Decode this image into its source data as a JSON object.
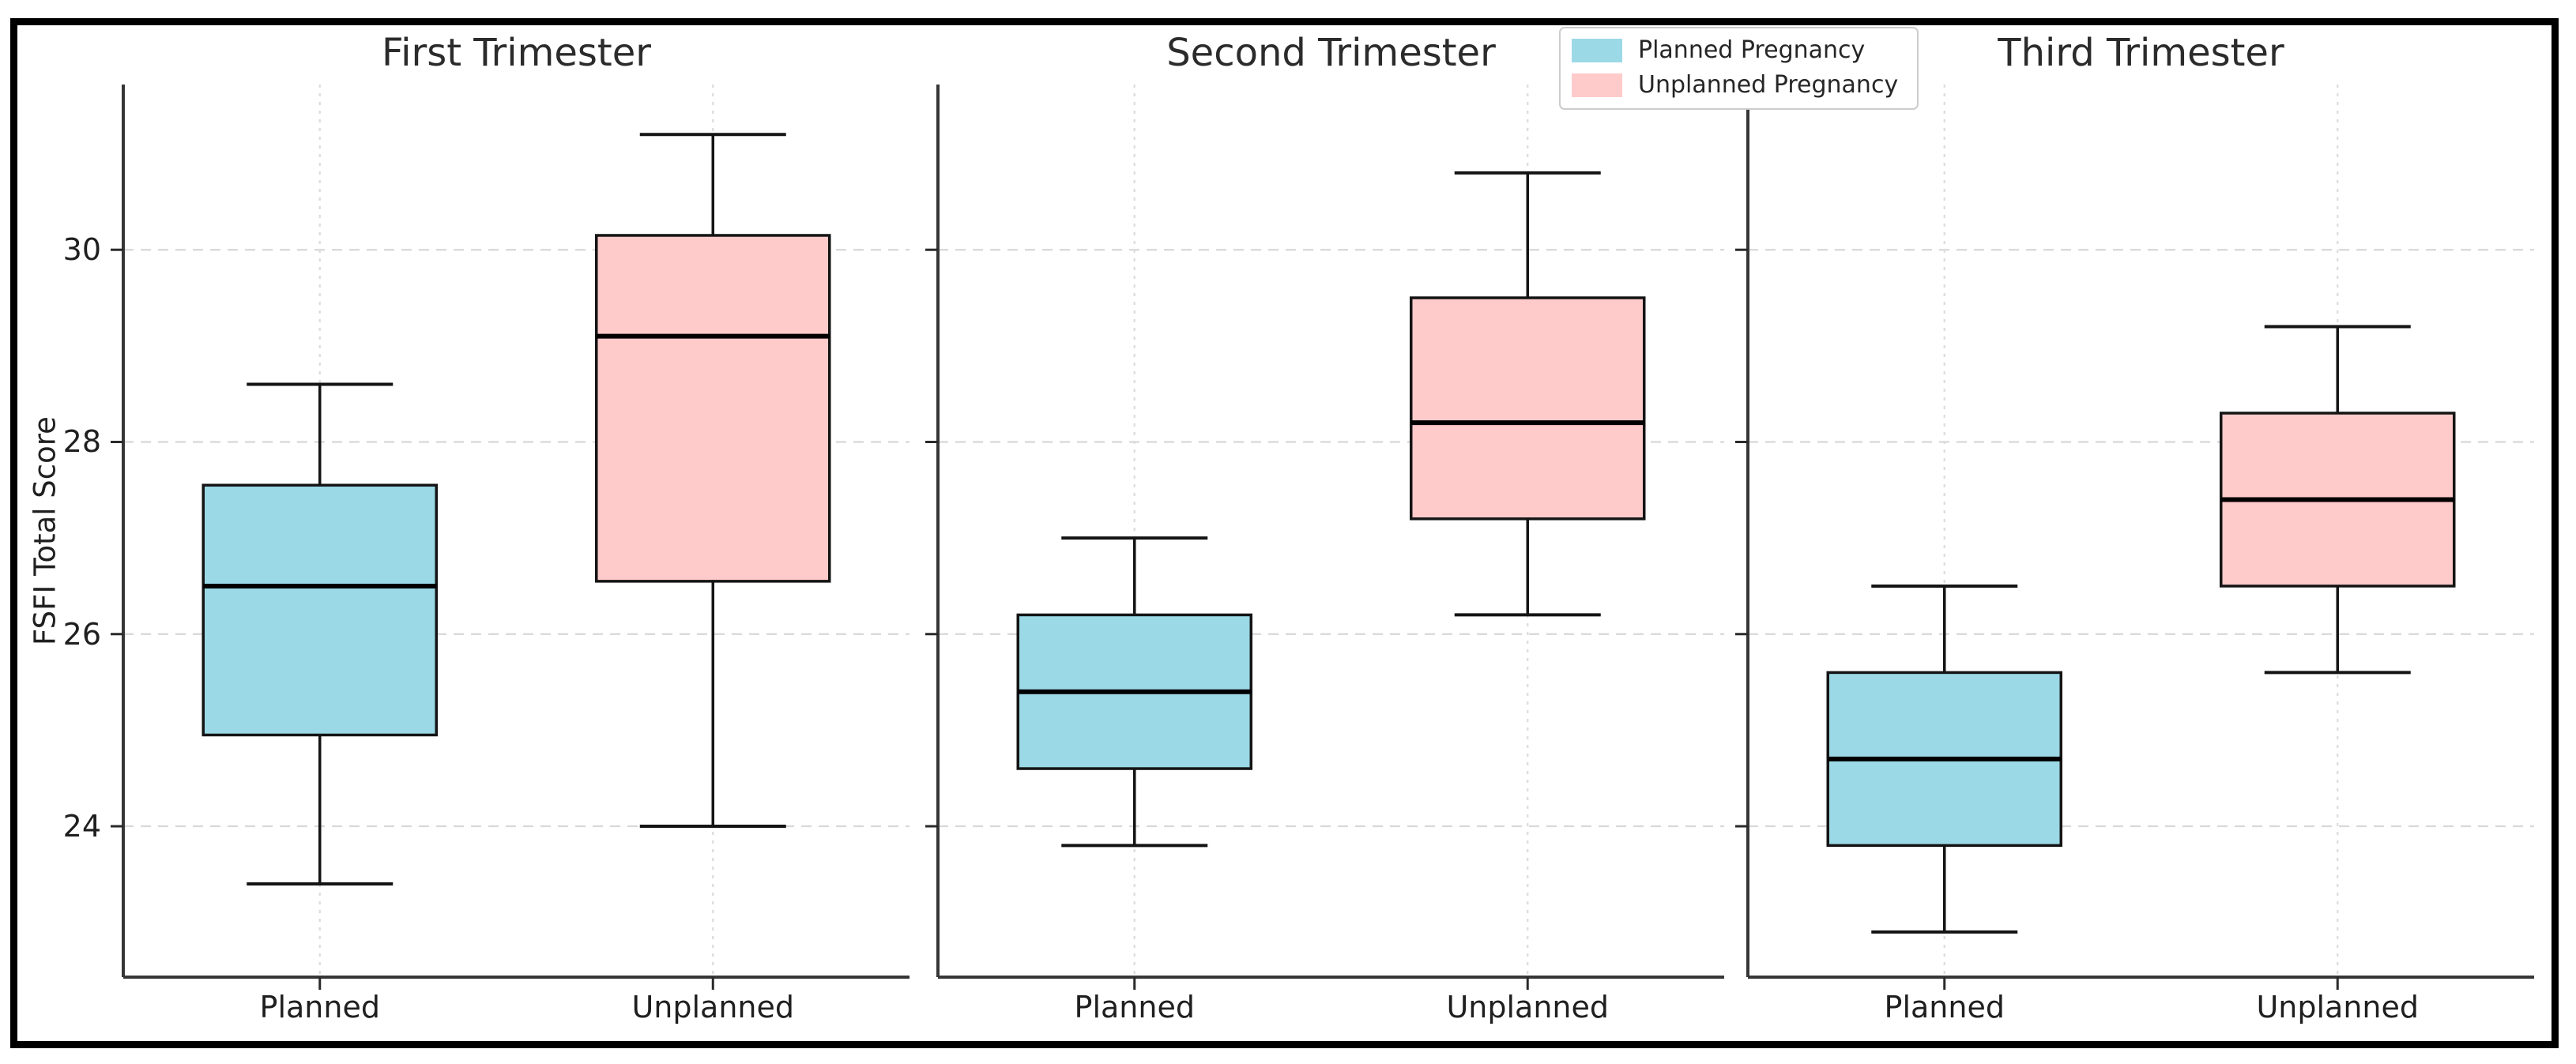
{
  "figure": {
    "background": "#ffffff",
    "border_color": "#000000"
  },
  "legend": {
    "items": [
      {
        "label": "Planned Pregnancy",
        "color": "#9bd9e6"
      },
      {
        "label": "Unplanned Pregnancy",
        "color": "#ffcaca"
      }
    ]
  },
  "chart_data": {
    "type": "box",
    "ylabel": "FSFI Total Score",
    "ylim": [
      22.43,
      31.72
    ],
    "yticks": [
      {
        "label": "30",
        "value": 30
      },
      {
        "label": "28",
        "value": 28
      },
      {
        "label": "26",
        "value": 26
      },
      {
        "label": "24",
        "value": 24
      }
    ],
    "groups": [
      "Planned",
      "Unplanned"
    ],
    "grid": {
      "horizontal": true,
      "vertical": true,
      "style": "dashed"
    },
    "legend_position": "top-center",
    "colors": {
      "planned_fill": "#9bd9e6",
      "unplanned_fill": "#ffcaca",
      "box_edge": "#141414",
      "median": "#000000",
      "whisker": "#141414",
      "grid_h": "#d8d8d8",
      "grid_v": "#dcdcdc",
      "spine": "#363636",
      "tick": "#2a2a2a"
    },
    "panels": [
      {
        "title": "First Trimester",
        "boxes": [
          {
            "group": "Planned",
            "series": "Planned Pregnancy",
            "whisker_low": 23.4,
            "q1": 24.95,
            "median": 26.5,
            "q3": 27.55,
            "whisker_high": 28.6
          },
          {
            "group": "Unplanned",
            "series": "Unplanned Pregnancy",
            "whisker_low": 24.0,
            "q1": 26.55,
            "median": 29.1,
            "q3": 30.15,
            "whisker_high": 31.2
          }
        ]
      },
      {
        "title": "Second Trimester",
        "boxes": [
          {
            "group": "Planned",
            "series": "Planned Pregnancy",
            "whisker_low": 23.8,
            "q1": 24.6,
            "median": 25.4,
            "q3": 26.2,
            "whisker_high": 27.0
          },
          {
            "group": "Unplanned",
            "series": "Unplanned Pregnancy",
            "whisker_low": 26.2,
            "q1": 27.2,
            "median": 28.2,
            "q3": 29.5,
            "whisker_high": 30.8
          }
        ]
      },
      {
        "title": "Third Trimester",
        "boxes": [
          {
            "group": "Planned",
            "series": "Planned Pregnancy",
            "whisker_low": 22.9,
            "q1": 23.8,
            "median": 24.7,
            "q3": 25.6,
            "whisker_high": 26.5
          },
          {
            "group": "Unplanned",
            "series": "Unplanned Pregnancy",
            "whisker_low": 25.6,
            "q1": 26.5,
            "median": 27.4,
            "q3": 28.3,
            "whisker_high": 29.2
          }
        ]
      }
    ]
  }
}
